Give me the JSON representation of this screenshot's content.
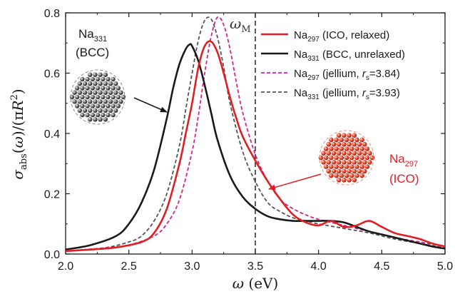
{
  "chart_data": {
    "type": "line",
    "xlabel": "ω (eV)",
    "ylabel": "σabs(ω)/(πR²)",
    "xlim": [
      2.0,
      5.0
    ],
    "ylim": [
      0.0,
      0.8
    ],
    "x_ticks": [
      "2.0",
      "2.5",
      "3.0",
      "3.5",
      "4.0",
      "4.5",
      "5.0"
    ],
    "y_ticks": [
      "0.0",
      "0.2",
      "0.4",
      "0.6",
      "0.8"
    ],
    "grid": false,
    "legend_position": "top-right",
    "vline": {
      "x": 3.5,
      "label": "ωM",
      "color": "#333333"
    },
    "series": [
      {
        "name": "Na297 (ICO, relaxed)",
        "color": "#e01e24",
        "dash": "solid",
        "x": [
          2.0,
          2.2,
          2.4,
          2.6,
          2.7,
          2.8,
          2.9,
          2.95,
          3.0,
          3.05,
          3.1,
          3.15,
          3.2,
          3.25,
          3.3,
          3.35,
          3.4,
          3.5,
          3.6,
          3.7,
          3.8,
          3.9,
          4.0,
          4.1,
          4.2,
          4.3,
          4.4,
          4.5,
          4.6,
          4.7,
          4.8,
          4.9,
          5.0
        ],
        "y": [
          0.01,
          0.015,
          0.022,
          0.04,
          0.07,
          0.15,
          0.3,
          0.4,
          0.5,
          0.62,
          0.69,
          0.705,
          0.67,
          0.6,
          0.52,
          0.45,
          0.39,
          0.31,
          0.24,
          0.18,
          0.13,
          0.105,
          0.095,
          0.11,
          0.09,
          0.095,
          0.11,
          0.09,
          0.07,
          0.06,
          0.05,
          0.035,
          0.025
        ]
      },
      {
        "name": "Na331 (BCC, unrelaxed)",
        "color": "#1a1a1a",
        "dash": "solid",
        "x": [
          2.0,
          2.2,
          2.4,
          2.5,
          2.6,
          2.7,
          2.8,
          2.85,
          2.9,
          2.95,
          2.98,
          3.0,
          3.05,
          3.1,
          3.15,
          3.2,
          3.3,
          3.4,
          3.5,
          3.6,
          3.7,
          3.8,
          3.9,
          4.0,
          4.1,
          4.2,
          4.3,
          4.4,
          4.5,
          4.6,
          4.7,
          4.8,
          4.9,
          5.0
        ],
        "y": [
          0.015,
          0.03,
          0.06,
          0.1,
          0.17,
          0.28,
          0.45,
          0.55,
          0.63,
          0.68,
          0.695,
          0.69,
          0.64,
          0.56,
          0.47,
          0.38,
          0.26,
          0.19,
          0.15,
          0.125,
          0.115,
          0.11,
          0.11,
          0.11,
          0.11,
          0.105,
          0.09,
          0.075,
          0.065,
          0.055,
          0.045,
          0.035,
          0.025,
          0.018
        ]
      },
      {
        "name": "Na297 (jellium, rs=3.84)",
        "color": "#d6218f",
        "dash": "dash",
        "x": [
          2.0,
          2.3,
          2.5,
          2.7,
          2.8,
          2.9,
          3.0,
          3.05,
          3.1,
          3.15,
          3.2,
          3.25,
          3.3,
          3.35,
          3.4,
          3.5,
          3.6,
          3.7,
          3.8,
          3.9,
          4.0,
          4.2,
          4.4,
          4.6,
          4.8,
          5.0
        ],
        "y": [
          0.01,
          0.02,
          0.03,
          0.06,
          0.1,
          0.18,
          0.34,
          0.46,
          0.6,
          0.72,
          0.785,
          0.76,
          0.68,
          0.57,
          0.47,
          0.33,
          0.24,
          0.18,
          0.15,
          0.13,
          0.115,
          0.095,
          0.075,
          0.055,
          0.04,
          0.025
        ]
      },
      {
        "name": "Na331 (jellium, rs=3.93)",
        "color": "#555555",
        "dash": "dash",
        "x": [
          2.0,
          2.3,
          2.5,
          2.6,
          2.7,
          2.8,
          2.9,
          2.95,
          3.0,
          3.05,
          3.1,
          3.15,
          3.2,
          3.25,
          3.3,
          3.4,
          3.5,
          3.6,
          3.7,
          3.8,
          3.9,
          4.0,
          4.2,
          4.4,
          4.6,
          4.8,
          5.0
        ],
        "y": [
          0.01,
          0.02,
          0.04,
          0.06,
          0.11,
          0.2,
          0.36,
          0.48,
          0.6,
          0.71,
          0.775,
          0.78,
          0.72,
          0.62,
          0.5,
          0.34,
          0.24,
          0.17,
          0.14,
          0.12,
          0.11,
          0.1,
          0.085,
          0.07,
          0.05,
          0.035,
          0.02
        ]
      }
    ],
    "annotations": [
      {
        "text": "Na331",
        "sub": "331",
        "base": "Na",
        "line2": "(BCC)",
        "color": "#1a1a1a"
      },
      {
        "text": "Na297",
        "sub": "297",
        "base": "Na",
        "line2": "(ICO)",
        "color": "#e01e24"
      }
    ]
  }
}
